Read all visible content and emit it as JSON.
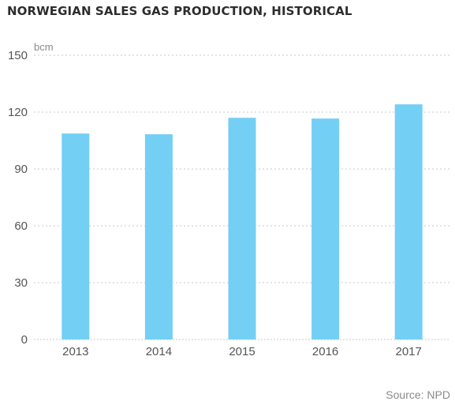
{
  "chart_data": {
    "type": "bar",
    "title": "NORWEGIAN SALES GAS PRODUCTION, HISTORICAL",
    "ylabel": "bcm",
    "xlabel": "",
    "categories": [
      "2013",
      "2014",
      "2015",
      "2016",
      "2017"
    ],
    "values": [
      108.7,
      108.3,
      117.0,
      116.6,
      124.1
    ],
    "ylim": [
      0,
      150
    ],
    "yticks": [
      0,
      30,
      60,
      90,
      120,
      150
    ],
    "grid": true,
    "bar_color": "#74cff5",
    "source": "Source: NPD"
  }
}
